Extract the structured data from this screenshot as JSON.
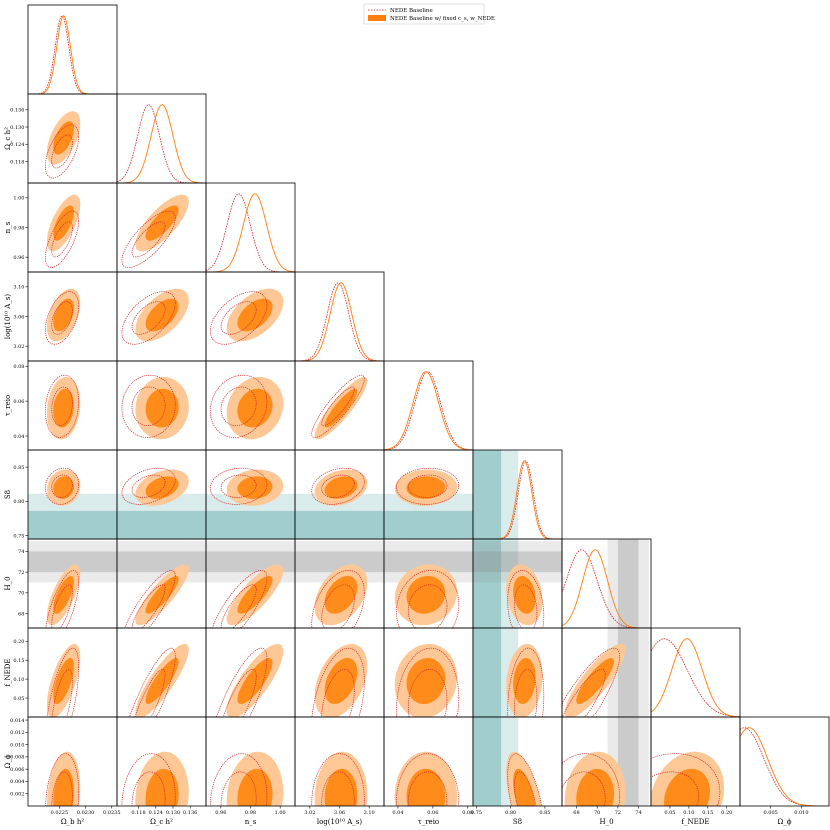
{
  "chart_data": {
    "type": "corner",
    "legend": {
      "placement": "top-center",
      "entries": [
        {
          "label": "NEDE Baseline",
          "style": "dashed-line",
          "color": "#d62728"
        },
        {
          "label": "NEDE Baseline w/ fixed c_s, w_NEDE",
          "style": "filled",
          "color": "#ff7f0e"
        }
      ]
    },
    "colors": {
      "baseline": "#d62728",
      "fixed": "#ff7f0e",
      "fixed_inner": "#ff8c1a",
      "fixed_outer": "#fdc895",
      "band_teal": "#2a8f8f",
      "band_gray": "#888888"
    },
    "parameters": [
      {
        "label": "Ω_b h²",
        "range": [
          0.0219,
          0.0236
        ],
        "ticks": [
          "0.0225",
          "0.0230",
          "0.0235"
        ],
        "tick_values": [
          0.0225,
          0.023,
          0.0235
        ]
      },
      {
        "label": "Ω_c h²",
        "range": [
          0.1105,
          0.1415
        ],
        "ticks": [
          "0.118",
          "0.124",
          "0.130",
          "0.136"
        ],
        "tick_values": [
          0.118,
          0.124,
          0.13,
          0.136
        ]
      },
      {
        "label": "n_s",
        "range": [
          0.95,
          1.01
        ],
        "ticks": [
          "0.96",
          "0.98",
          "1.00"
        ],
        "tick_values": [
          0.96,
          0.98,
          1.0
        ]
      },
      {
        "label": "log(10¹⁰ A_s)",
        "range": [
          3.0,
          3.12
        ],
        "ticks": [
          "3.02",
          "3.06",
          "3.10"
        ],
        "tick_values": [
          3.02,
          3.06,
          3.1
        ]
      },
      {
        "label": "τ_reio",
        "range": [
          0.032,
          0.083
        ],
        "ticks": [
          "0.04",
          "0.06",
          "0.08"
        ],
        "tick_values": [
          0.04,
          0.06,
          0.08
        ]
      },
      {
        "label": "S8",
        "range": [
          0.745,
          0.875
        ],
        "ticks": [
          "0.75",
          "0.80",
          "0.85"
        ],
        "tick_values": [
          0.75,
          0.8,
          0.85
        ]
      },
      {
        "label": "H_0",
        "range": [
          66.6,
          75.2
        ],
        "ticks": [
          "68",
          "70",
          "72",
          "74"
        ],
        "tick_values": [
          68,
          70,
          72,
          74
        ]
      },
      {
        "label": "f_NEDE",
        "range": [
          0.0,
          0.235
        ],
        "ticks": [
          "0.05",
          "0.10",
          "0.15",
          "0.20"
        ],
        "tick_values": [
          0.05,
          0.1,
          0.15,
          0.2
        ]
      },
      {
        "label": "Ω_ϕ",
        "range": [
          0.0,
          0.0145
        ],
        "ticks": [
          "0.002",
          "0.004",
          "0.006",
          "0.008",
          "0.010",
          "0.012",
          "0.014"
        ],
        "tick_values": [
          0.002,
          0.004,
          0.006,
          0.008,
          0.01,
          0.012,
          0.014
        ]
      }
    ],
    "diagonal_x_ticks": {
      "Ω_ϕ": {
        "labels": [
          "0.005",
          "0.010"
        ],
        "values": [
          0.005,
          0.01
        ]
      }
    },
    "posteriors": {
      "baseline": {
        "mean": [
          0.02255,
          0.1215,
          0.972,
          3.058,
          0.057,
          0.822,
          68.5,
          0.035,
          0.0007
        ],
        "std": [
          0.00013,
          0.0038,
          0.0078,
          0.0145,
          0.0073,
          0.0108,
          1.5,
          0.06,
          0.0032
        ]
      },
      "fixed": {
        "mean": [
          0.02258,
          0.1262,
          0.983,
          3.062,
          0.056,
          0.82,
          69.8,
          0.095,
          0.0015
        ],
        "std": [
          0.00013,
          0.0038,
          0.0078,
          0.0145,
          0.0073,
          0.0108,
          1.2,
          0.04,
          0.003
        ]
      }
    },
    "external_bands": [
      {
        "param": "S8",
        "center": 0.766,
        "half_width_1": 0.02,
        "half_width_2": 0.045,
        "color": "teal"
      },
      {
        "param": "H_0",
        "center": 73.0,
        "half_width_1": 1.0,
        "half_width_2": 2.0,
        "color": "gray"
      }
    ]
  }
}
